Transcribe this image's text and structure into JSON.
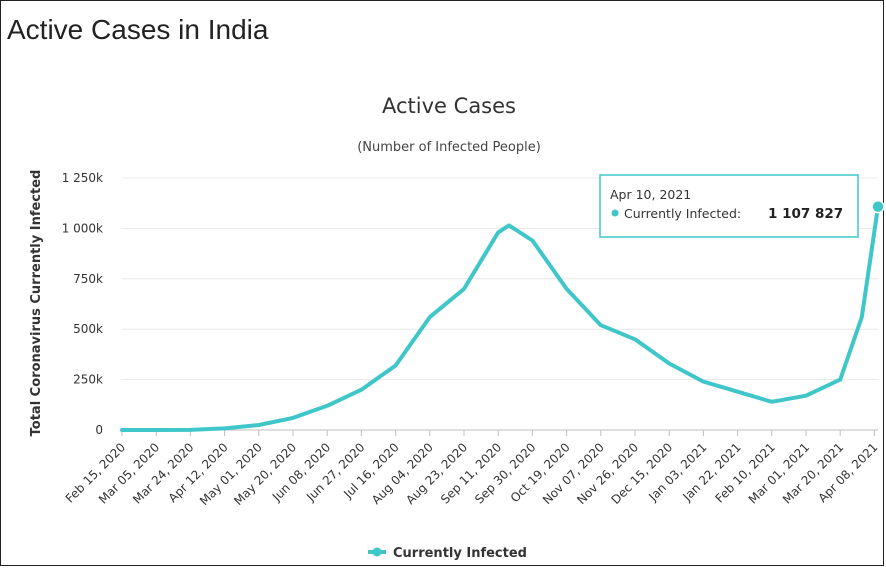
{
  "page": {
    "title": "Active Cases in India"
  },
  "colors": {
    "series": "#3fc6c9",
    "grid": "#e8e8e8",
    "axis": "#bfbfbf"
  },
  "chart_data": {
    "type": "area",
    "title": "Active Cases",
    "subtitle": "(Number of Infected People)",
    "xlabel": "",
    "ylabel": "Total Coronavirus Currently Infected",
    "ylim": [
      0,
      1250000
    ],
    "y_ticks": [
      "0",
      "250k",
      "500k",
      "750k",
      "1 000k",
      "1 250k"
    ],
    "x_ticks": [
      "Feb 15, 2020",
      "Mar 05, 2020",
      "Mar 24, 2020",
      "Apr 12, 2020",
      "May 01, 2020",
      "May 20, 2020",
      "Jun 08, 2020",
      "Jun 27, 2020",
      "Jul 16, 2020",
      "Aug 04, 2020",
      "Aug 23, 2020",
      "Sep 11, 2020",
      "Sep 30, 2020",
      "Oct 19, 2020",
      "Nov 07, 2020",
      "Nov 26, 2020",
      "Dec 15, 2020",
      "Jan 03, 2021",
      "Jan 22, 2021",
      "Feb 10, 2021",
      "Mar 01, 2021",
      "Mar 20, 2021",
      "Apr 08, 2021"
    ],
    "grid": true,
    "legend_position": "bottom-center",
    "series": [
      {
        "name": "Currently Infected",
        "color": "#3fc6c9",
        "points": [
          [
            "Feb 15, 2020",
            0
          ],
          [
            "Mar 05, 2020",
            0
          ],
          [
            "Mar 24, 2020",
            500
          ],
          [
            "Apr 12, 2020",
            8000
          ],
          [
            "May 01, 2020",
            25000
          ],
          [
            "May 20, 2020",
            60000
          ],
          [
            "Jun 08, 2020",
            120000
          ],
          [
            "Jun 27, 2020",
            200000
          ],
          [
            "Jul 16, 2020",
            320000
          ],
          [
            "Aug 04, 2020",
            560000
          ],
          [
            "Aug 23, 2020",
            700000
          ],
          [
            "Sep 11, 2020",
            980000
          ],
          [
            "Sep 17, 2020",
            1015000
          ],
          [
            "Sep 30, 2020",
            940000
          ],
          [
            "Oct 19, 2020",
            700000
          ],
          [
            "Nov 07, 2020",
            520000
          ],
          [
            "Nov 26, 2020",
            450000
          ],
          [
            "Dec 15, 2020",
            330000
          ],
          [
            "Jan 03, 2021",
            240000
          ],
          [
            "Jan 22, 2021",
            190000
          ],
          [
            "Feb 10, 2021",
            140000
          ],
          [
            "Mar 01, 2021",
            170000
          ],
          [
            "Mar 20, 2021",
            250000
          ],
          [
            "Apr 01, 2021",
            560000
          ],
          [
            "Apr 10, 2021",
            1107827
          ]
        ]
      }
    ],
    "tooltip": {
      "date": "Apr 10, 2021",
      "label": "Currently Infected:",
      "value": "1 107 827"
    }
  }
}
